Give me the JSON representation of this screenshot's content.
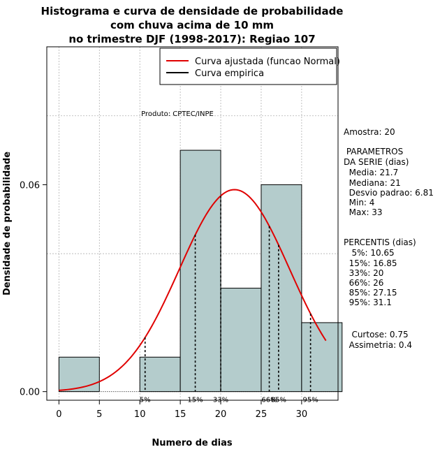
{
  "chart_data": {
    "type": "histogram",
    "title": [
      "Histograma e curva de densidade de probabilidade",
      "com chuva acima de 10 mm",
      "no trimestre DJF (1998-2017): Regiao 107"
    ],
    "xlabel": "Numero de dias",
    "ylabel": "Densidade de probabilidade",
    "xlim": [
      -1.5,
      34.5
    ],
    "ylim": [
      -0.0025,
      0.1
    ],
    "x_ticks": [
      0,
      5,
      10,
      15,
      20,
      25,
      30
    ],
    "y_ticks": [
      0.0,
      0.06
    ],
    "y_tick_labels": [
      "0.00",
      "0.06"
    ],
    "bins": [
      {
        "x0": 0,
        "x1": 5,
        "density": 0.01
      },
      {
        "x0": 5,
        "x1": 10,
        "density": 0.0
      },
      {
        "x0": 10,
        "x1": 15,
        "density": 0.01
      },
      {
        "x0": 15,
        "x1": 20,
        "density": 0.07
      },
      {
        "x0": 20,
        "x1": 25,
        "density": 0.03
      },
      {
        "x0": 25,
        "x1": 30,
        "density": 0.06
      },
      {
        "x0": 30,
        "x1": 35,
        "density": 0.02
      }
    ],
    "normal_fit": {
      "mean": 21.7,
      "sd": 6.81,
      "x_from": 0,
      "x_to": 33
    },
    "percentile_lines": [
      {
        "label": "5%",
        "x": 10.65
      },
      {
        "label": "15%",
        "x": 16.85
      },
      {
        "label": "33%",
        "x": 20
      },
      {
        "label": "66%",
        "x": 26
      },
      {
        "label": "85%",
        "x": 27.15
      },
      {
        "label": "95%",
        "x": 31.1
      }
    ],
    "legend": {
      "position": "top-right",
      "entries": [
        {
          "label": "Curva ajustada (funcao Normal)",
          "color": "#e00000"
        },
        {
          "label": "Curva empirica",
          "color": "#000000"
        }
      ]
    },
    "annotation": "Produto: CPTEC/INPE",
    "colors": {
      "bar_fill": "#b4cccc",
      "curve": "#e00000",
      "grid": "#b0b0b0"
    }
  },
  "stats": {
    "amostra": "Amostra: 20",
    "parametros_title": " PARAMETROS",
    "parametros_subtitle": "DA SERIE (dias)",
    "media": "  Media: 21.7",
    "mediana": "  Mediana: 21",
    "desvio": "  Desvio padrao: 6.81",
    "min": "  Min: 4",
    "max": "  Max: 33",
    "percentis_title": "PERCENTIS (dias)",
    "p5": "   5%: 10.65",
    "p15": "  15%: 16.85",
    "p33": "  33%: 20",
    "p66": "  66%: 26",
    "p85": "  85%: 27.15",
    "p95": "  95%: 31.1",
    "curtose": "   Curtose: 0.75",
    "assimetria": "  Assimetria: 0.4"
  }
}
